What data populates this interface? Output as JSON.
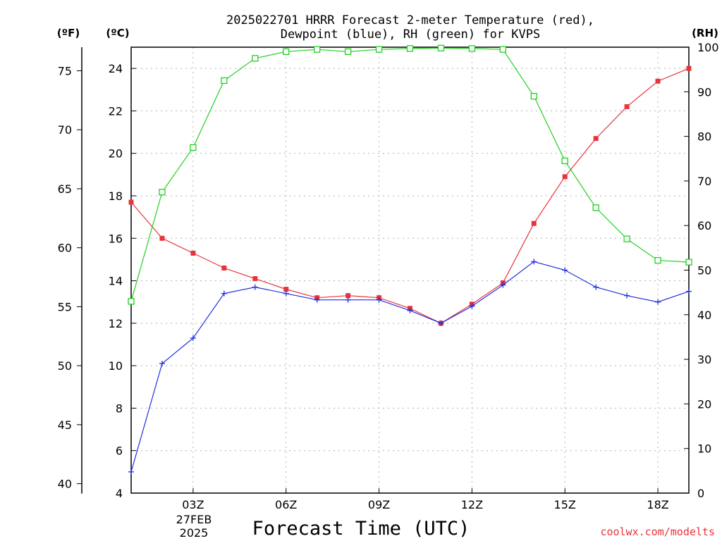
{
  "chart_data": {
    "type": "line",
    "title_line1": "2025022701 HRRR Forecast 2-meter Temperature (red),",
    "title_line2": "Dewpoint (blue), RH (green) for KVPS",
    "xlabel": "Forecast Time (UTC)",
    "units": {
      "fahrenheit": "(ºF)",
      "celsius": "(ºC)",
      "rh": "(RH)"
    },
    "x_hours": [
      1,
      2,
      3,
      4,
      5,
      6,
      7,
      8,
      9,
      10,
      11,
      12,
      13,
      14,
      15,
      16,
      17,
      18,
      19
    ],
    "x_ticks": [
      {
        "hour": 3,
        "label": "03Z"
      },
      {
        "hour": 6,
        "label": "06Z"
      },
      {
        "hour": 9,
        "label": "09Z"
      },
      {
        "hour": 12,
        "label": "12Z"
      },
      {
        "hour": 15,
        "label": "15Z"
      },
      {
        "hour": 18,
        "label": "18Z"
      }
    ],
    "date_line1": "27FEB",
    "date_line2": "2025",
    "xlim": [
      1,
      19
    ],
    "ylim_celsius": [
      4,
      25
    ],
    "y_ticks_celsius": [
      "4",
      "6",
      "8",
      "10",
      "12",
      "14",
      "16",
      "18",
      "20",
      "22",
      "24"
    ],
    "y_ticks_fahrenheit": [
      "40",
      "45",
      "50",
      "55",
      "60",
      "65",
      "70",
      "75"
    ],
    "ylim_rh": [
      0,
      100
    ],
    "y_ticks_rh": [
      "0",
      "10",
      "20",
      "30",
      "40",
      "50",
      "60",
      "70",
      "80",
      "90",
      "100"
    ],
    "grid": true,
    "series": [
      {
        "name": "Temperature (red)",
        "axis": "celsius",
        "color": "#e8333a",
        "marker": "filled-square",
        "values": [
          17.7,
          16.0,
          15.3,
          14.6,
          14.1,
          13.6,
          13.2,
          13.3,
          13.2,
          12.7,
          12.0,
          12.9,
          13.9,
          16.7,
          18.9,
          20.7,
          22.2,
          23.4,
          24.0
        ]
      },
      {
        "name": "Dewpoint (blue)",
        "axis": "celsius",
        "color": "#2030e0",
        "marker": "plus",
        "values": [
          5.0,
          10.1,
          11.3,
          13.4,
          13.7,
          13.4,
          13.1,
          13.1,
          13.1,
          12.6,
          12.0,
          12.8,
          13.8,
          14.9,
          14.5,
          13.7,
          13.3,
          13.0,
          13.5
        ]
      },
      {
        "name": "RH (green)",
        "axis": "rh",
        "color": "#22d022",
        "marker": "open-square",
        "values": [
          43,
          67.5,
          77.5,
          92.5,
          97.5,
          99,
          99.5,
          99,
          99.5,
          99.7,
          99.8,
          99.7,
          99.5,
          89,
          74.5,
          64,
          57,
          52.2,
          51.8
        ]
      }
    ],
    "credit": "coolwx.com/modelts",
    "credit_color": "#e8333a"
  }
}
